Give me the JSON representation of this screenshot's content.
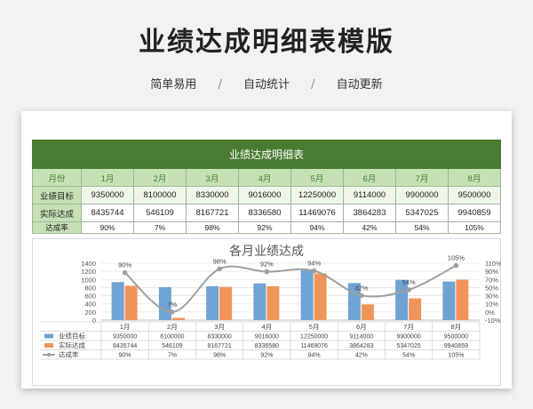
{
  "header": {
    "title": "业绩达成明细表模版",
    "tags": [
      "简单易用",
      "自动统计",
      "自动更新"
    ],
    "separator": "/"
  },
  "table": {
    "title": "业绩达成明细表",
    "corner": "月份",
    "months": [
      "1月",
      "2月",
      "3月",
      "4月",
      "5月",
      "6月",
      "7月",
      "8月"
    ],
    "rows": [
      {
        "label": "业绩目标",
        "values": [
          "9350000",
          "8100000",
          "8330000",
          "9016000",
          "12250000",
          "9114000",
          "9900000",
          "9500000"
        ]
      },
      {
        "label": "实际达成",
        "values": [
          "8435744",
          "546109",
          "8167721",
          "8336580",
          "11469076",
          "3864283",
          "5347025",
          "9940859"
        ]
      },
      {
        "label": "达成率",
        "values": [
          "90%",
          "7%",
          "98%",
          "92%",
          "94%",
          "42%",
          "54%",
          "105%"
        ]
      }
    ]
  },
  "chart_data": {
    "type": "bar",
    "title": "各月业绩达成",
    "categories": [
      "1月",
      "2月",
      "3月",
      "4月",
      "5月",
      "6月",
      "7月",
      "8月"
    ],
    "series": [
      {
        "name": "业绩目标",
        "kind": "bar",
        "color": "#6fa3d3",
        "values": [
          935,
          810,
          833,
          901.6,
          1225,
          911.4,
          990,
          950
        ]
      },
      {
        "name": "实际达成",
        "kind": "bar",
        "color": "#f0955a",
        "values": [
          843.6,
          54.6,
          816.8,
          833.7,
          1146.9,
          386.4,
          534.7,
          994.1
        ]
      },
      {
        "name": "达成率",
        "kind": "line",
        "color": "#a0a0a0",
        "values": [
          90,
          7,
          98,
          92,
          94,
          42,
          54,
          105
        ],
        "labels": [
          "90%",
          "7%",
          "98%",
          "92%",
          "94%",
          "42%",
          "54%",
          "105%"
        ]
      }
    ],
    "y_left": {
      "min": 0,
      "max": 1400,
      "ticks": [
        "0",
        "200",
        "400",
        "600",
        "800",
        "1000",
        "1200",
        "1400"
      ]
    },
    "y_right": {
      "min": -10,
      "max": 110,
      "ticks": [
        "-10%",
        "0%",
        "10%",
        "30%",
        "50%",
        "70%",
        "90%",
        "110%"
      ]
    },
    "table_rows": [
      {
        "label": "业绩目标",
        "values": [
          "9350000",
          "8100000",
          "8330000",
          "9016000",
          "12250000",
          "9114000",
          "9900000",
          "9500000"
        ]
      },
      {
        "label": "实际达成",
        "values": [
          "8435744",
          "546109",
          "8167721",
          "8336580",
          "11469076",
          "3864283",
          "5347025",
          "9940859"
        ]
      },
      {
        "label": "达成率",
        "values": [
          "90%",
          "7%",
          "98%",
          "92%",
          "94%",
          "42%",
          "54%",
          "105%"
        ]
      }
    ]
  }
}
